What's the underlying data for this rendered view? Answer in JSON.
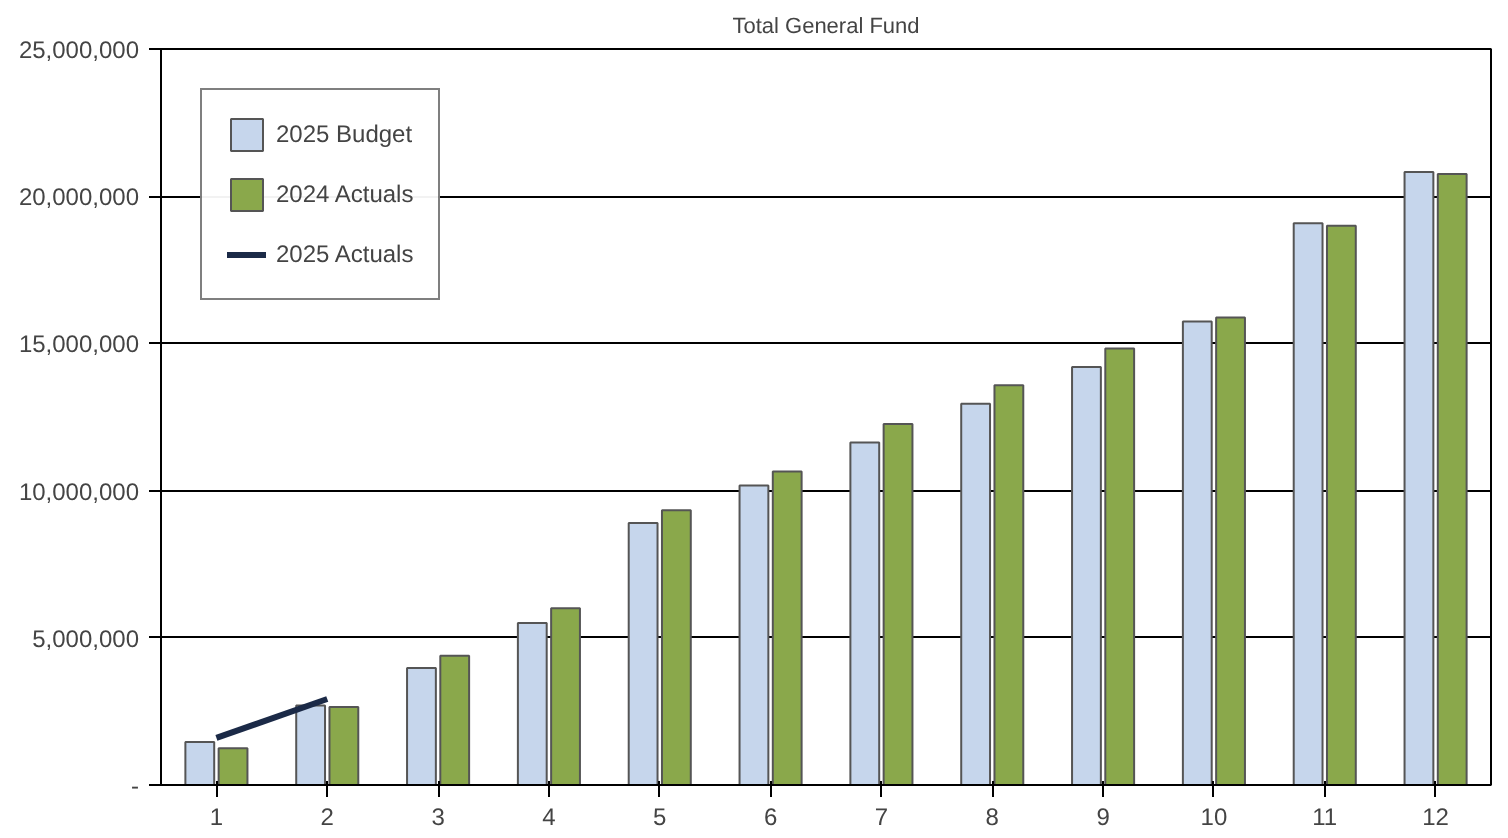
{
  "chart_data": {
    "type": "bar",
    "title": "Total General Fund",
    "x": [
      1,
      2,
      3,
      4,
      5,
      6,
      7,
      8,
      9,
      10,
      11,
      12
    ],
    "xlim": [
      0.5,
      12.5
    ],
    "xticks": [
      1,
      2,
      3,
      4,
      5,
      6,
      7,
      8,
      9,
      10,
      11,
      12
    ],
    "series": [
      {
        "name": "2025 Budget",
        "color": "#c6d6ec",
        "values": [
          1460000,
          2700000,
          3970000,
          5500000,
          8900000,
          10170000,
          11630000,
          12950000,
          14200000,
          15740000,
          19080000,
          20820000
        ]
      },
      {
        "name": "2024 Actuals",
        "color": "#8aa84b",
        "values": [
          1250000,
          2650000,
          4390000,
          6000000,
          9330000,
          10650000,
          12260000,
          13580000,
          14830000,
          15880000,
          19000000,
          20750000
        ]
      },
      {
        "name": "2025 Actuals",
        "type": "line",
        "color": "#1b2a47",
        "x": [
          1,
          2
        ],
        "values": [
          1600000,
          2920000
        ]
      }
    ],
    "ylim": [
      0,
      25000000
    ],
    "yticks": [
      {
        "value": 0,
        "label": "-"
      },
      {
        "value": 5000000,
        "label": "5,000,000"
      },
      {
        "value": 10000000,
        "label": "10,000,000"
      },
      {
        "value": 15000000,
        "label": "15,000,000"
      },
      {
        "value": 20000000,
        "label": "20,000,000"
      },
      {
        "value": 25000000,
        "label": "25,000,000"
      }
    ],
    "grid": "y",
    "legend": "top left"
  }
}
